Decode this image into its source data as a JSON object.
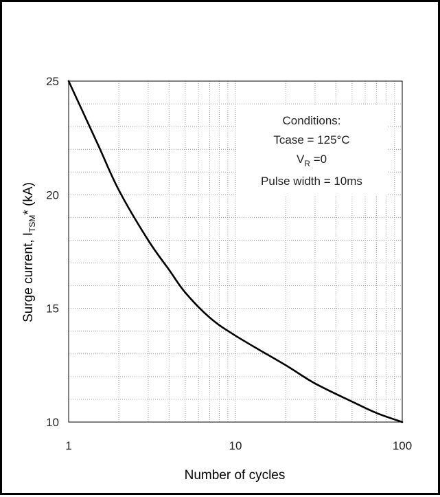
{
  "chart_data": {
    "type": "line",
    "xscale": "log",
    "xlim": [
      1,
      100
    ],
    "ylim": [
      10,
      25
    ],
    "x_ticks": [
      1,
      10,
      100
    ],
    "y_ticks": [
      10,
      15,
      20,
      25
    ],
    "xlabel": "Number of cycles",
    "ylabel_main": "Surge current, I",
    "ylabel_sub": "TSM",
    "ylabel_tail": "* (kA)",
    "grid": true,
    "annotation": {
      "title": "Conditions:",
      "tcase": "Tcase = 125°C",
      "vr_main": "V",
      "vr_sub": "R",
      "vr_tail": " =0",
      "pulse": "Pulse width = 10ms"
    },
    "series": [
      {
        "x": [
          1,
          1.5,
          2,
          3,
          4,
          5,
          7,
          10,
          20,
          30,
          50,
          70,
          100
        ],
        "y": [
          25,
          22.2,
          20.2,
          18.0,
          16.7,
          15.7,
          14.6,
          13.8,
          12.5,
          11.7,
          10.9,
          10.4,
          10.0
        ]
      }
    ],
    "line_color": "#000000",
    "grid_color": "#9a9a9a"
  }
}
